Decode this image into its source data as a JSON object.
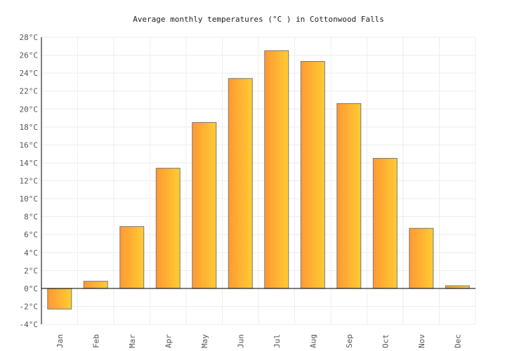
{
  "chart_data": {
    "type": "bar",
    "title": "Average monthly temperatures (°C ) in Cottonwood Falls",
    "categories": [
      "Jan",
      "Feb",
      "Mar",
      "Apr",
      "May",
      "Jun",
      "Jul",
      "Aug",
      "Sep",
      "Oct",
      "Nov",
      "Dec"
    ],
    "values": [
      -2.3,
      0.8,
      6.9,
      13.4,
      18.5,
      23.4,
      26.5,
      25.3,
      20.6,
      14.5,
      6.7,
      0.3
    ],
    "unit": "°C",
    "ylim": [
      -4,
      28
    ],
    "ytick_step": 2,
    "grid": true,
    "legend": "none",
    "colors": {
      "bar_start": "#ff9933",
      "bar_end": "#ffcc33",
      "bar_stroke": "#777777",
      "grid": "#eeeeee"
    }
  }
}
